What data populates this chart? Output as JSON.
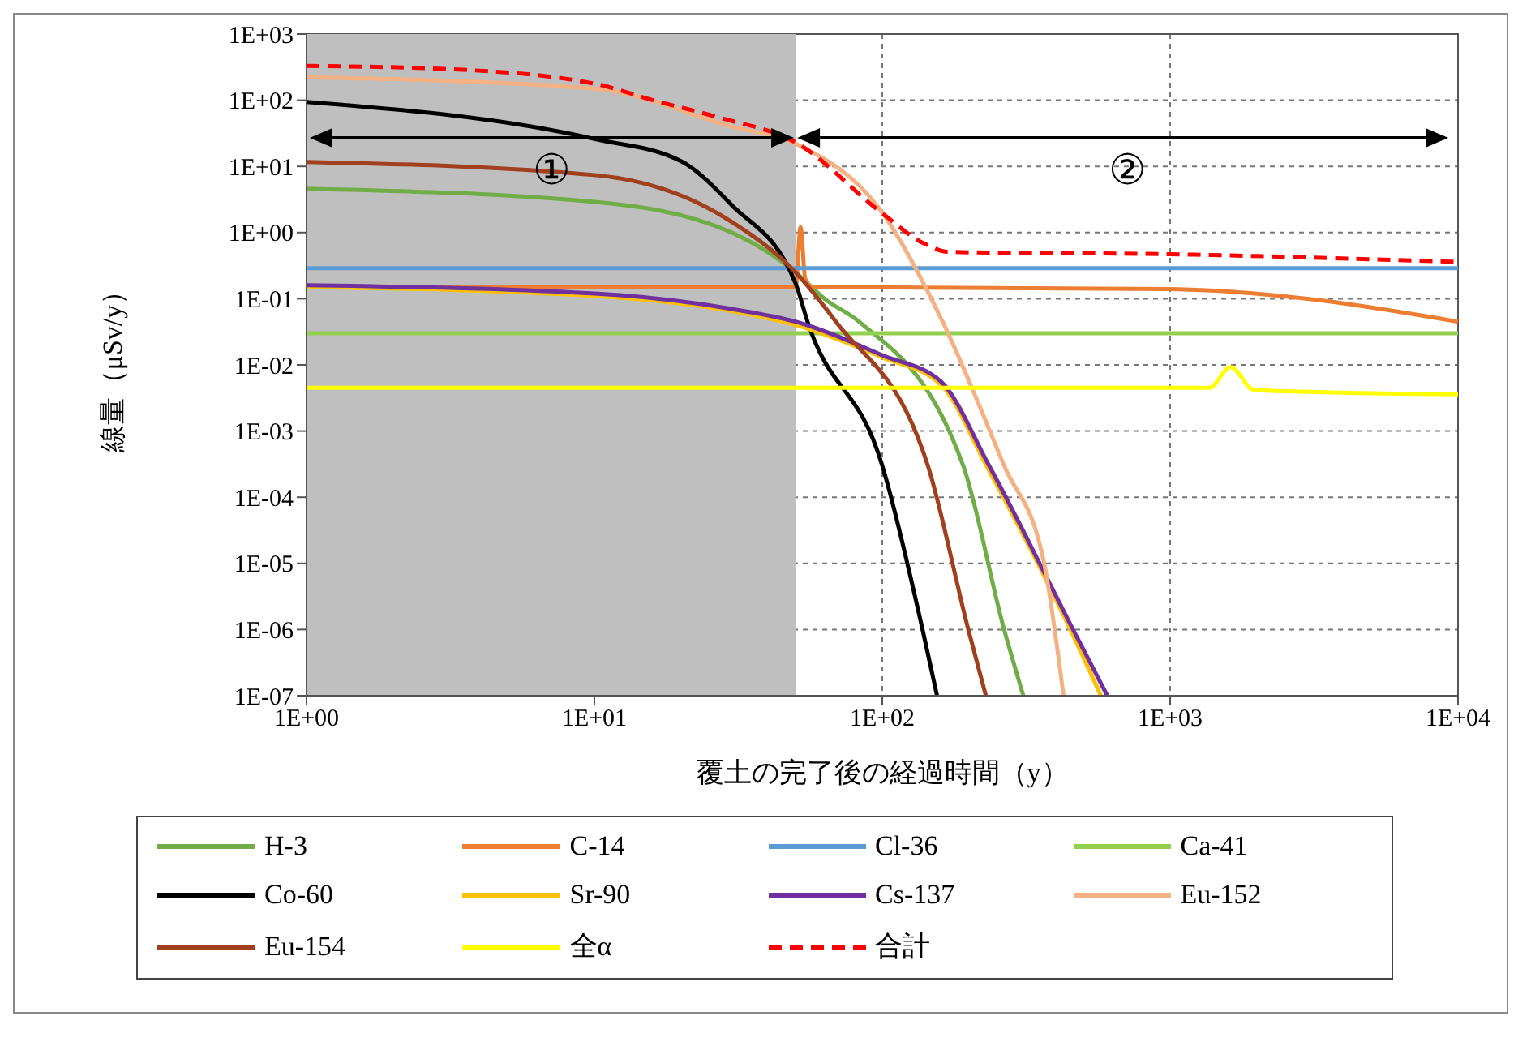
{
  "chart_data": {
    "type": "line",
    "xlabel": "覆土の完了後の経過時間（y）",
    "ylabel": "線量（μSv/y）",
    "log": "xy",
    "grid": true,
    "legend": "bottom",
    "marker": "none",
    "xlim": [
      1,
      10000
    ],
    "xticks": [
      {
        "value": 1,
        "label": "1E+00"
      },
      {
        "value": 10,
        "label": "1E+01"
      },
      {
        "value": 100,
        "label": "1E+02"
      },
      {
        "value": 1000,
        "label": "1E+03"
      },
      {
        "value": 10000,
        "label": "1E+04"
      }
    ],
    "ylim": [
      1e-07,
      1000
    ],
    "yticks": [
      {
        "value": 1e-07,
        "label": "1E-07"
      },
      {
        "value": 1e-06,
        "label": "1E-06"
      },
      {
        "value": 1e-05,
        "label": "1E-05"
      },
      {
        "value": 0.0001,
        "label": "1E-04"
      },
      {
        "value": 0.001,
        "label": "1E-03"
      },
      {
        "value": 0.01,
        "label": "1E-02"
      },
      {
        "value": 0.1,
        "label": "1E-01"
      },
      {
        "value": 1,
        "label": "1E+00"
      },
      {
        "value": 10,
        "label": "1E+01"
      },
      {
        "value": 100,
        "label": "1E+02"
      },
      {
        "value": 1000,
        "label": "1E+03"
      }
    ],
    "bands": [
      {
        "axis": "x",
        "from": 1,
        "to": 50,
        "color": "#bfbfbf"
      }
    ],
    "annotations": [
      "①",
      "②"
    ],
    "series": [
      {
        "name": "H-3",
        "color": "#70ad47",
        "x": [
          1,
          10,
          30,
          50,
          63,
          83,
          191,
          265,
          309
        ],
        "values": [
          4.6,
          2.9,
          1.0,
          0.25,
          0.1,
          0.045,
          0.0003,
          1e-06,
          1e-07
        ]
      },
      {
        "name": "C-14",
        "color": "#ed7d31",
        "x": [
          1,
          50,
          52,
          54,
          57,
          1000,
          3000,
          10000
        ],
        "values": [
          0.15,
          0.15,
          1.2,
          0.2,
          0.15,
          0.14,
          0.1,
          0.045
        ]
      },
      {
        "name": "Cl-36",
        "color": "#5b9bd5",
        "x": [
          1,
          10000
        ],
        "values": [
          0.29,
          0.29
        ]
      },
      {
        "name": "Ca-41",
        "color": "#92d050",
        "x": [
          1,
          10000
        ],
        "values": [
          0.03,
          0.03
        ]
      },
      {
        "name": "Co-60",
        "color": "#000000",
        "x": [
          1,
          10,
          20,
          30,
          50,
          55,
          100,
          138,
          155
        ],
        "values": [
          94,
          26,
          12,
          2.6,
          0.17,
          0.045,
          0.0003,
          1e-06,
          1e-07
        ]
      },
      {
        "name": "Sr-90",
        "color": "#ffc000",
        "x": [
          1,
          10,
          30,
          50,
          100,
          160,
          230,
          450,
          575
        ],
        "values": [
          0.15,
          0.11,
          0.065,
          0.04,
          0.013,
          0.005,
          0.0003,
          1e-06,
          1e-07
        ]
      },
      {
        "name": "Cs-137",
        "color": "#7030a0",
        "x": [
          1,
          10,
          30,
          50,
          100,
          160,
          235,
          460,
          605
        ],
        "values": [
          0.16,
          0.12,
          0.07,
          0.045,
          0.014,
          0.0056,
          0.0003,
          1e-06,
          1e-07
        ]
      },
      {
        "name": "Eu-152",
        "color": "#f4b183",
        "x": [
          1,
          10,
          30,
          50,
          100,
          162,
          265,
          365,
          426
        ],
        "values": [
          222,
          150,
          40,
          22,
          2,
          0.045,
          0.0003,
          1e-05,
          1e-07
        ]
      },
      {
        "name": "Eu-154",
        "color": "#a0401e",
        "x": [
          1,
          10,
          30,
          50,
          69,
          144,
          199,
          229
        ],
        "values": [
          11.7,
          7.4,
          1.45,
          0.25,
          0.045,
          0.0003,
          1e-06,
          1e-07
        ]
      },
      {
        "name": "全α",
        "color": "#ffff00",
        "x": [
          1,
          1000,
          1370,
          1620,
          1950,
          2500,
          10000
        ],
        "values": [
          0.0045,
          0.0045,
          0.0045,
          0.0093,
          0.0042,
          0.004,
          0.0036
        ]
      },
      {
        "name": "合計",
        "color": "#ff0000",
        "line_style": "dashed",
        "x": [
          1,
          3,
          10,
          16,
          27,
          50,
          100,
          140,
          170,
          1000,
          10000
        ],
        "values": [
          330,
          297,
          178,
          100,
          55,
          23,
          1.95,
          0.68,
          0.51,
          0.47,
          0.36
        ]
      }
    ]
  }
}
